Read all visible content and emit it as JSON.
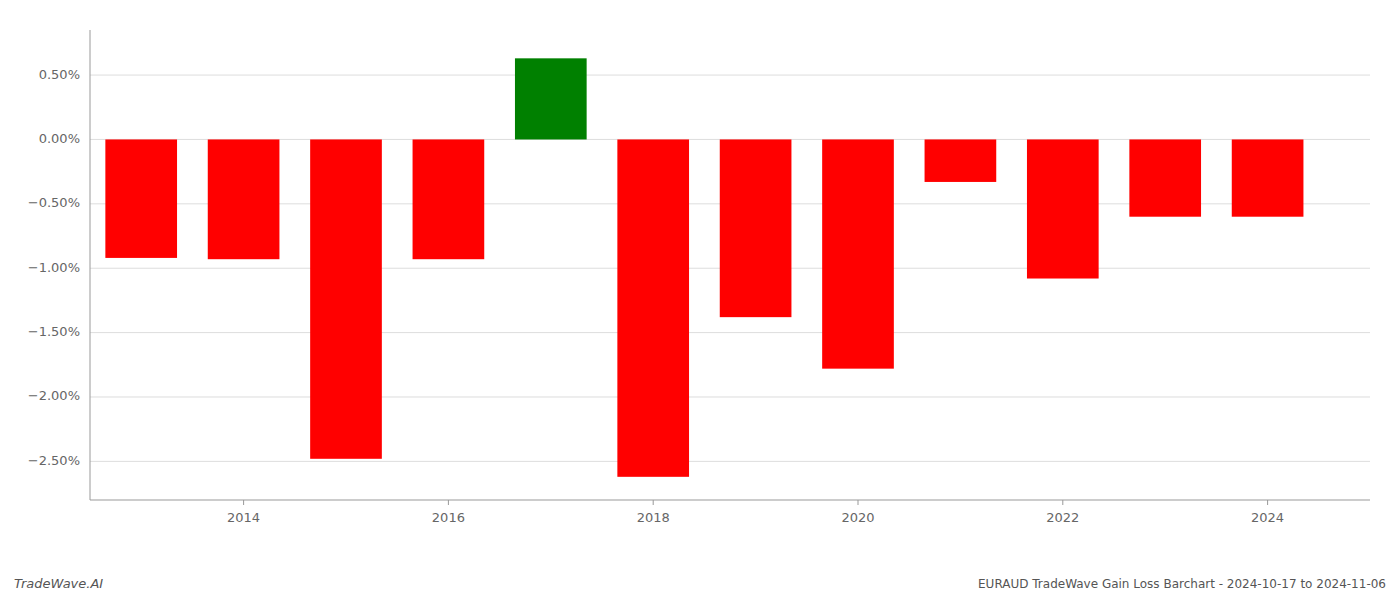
{
  "chart_data": {
    "type": "bar",
    "x": [
      2013,
      2014,
      2015,
      2016,
      2017,
      2018,
      2019,
      2020,
      2021,
      2022,
      2023,
      2024
    ],
    "values": [
      -0.0092,
      -0.0093,
      -0.0248,
      -0.0093,
      0.0063,
      -0.0262,
      -0.0138,
      -0.0178,
      -0.0033,
      -0.0108,
      -0.006,
      -0.006
    ],
    "colors": [
      "red",
      "red",
      "red",
      "red",
      "green",
      "red",
      "red",
      "red",
      "red",
      "red",
      "red",
      "red"
    ],
    "xlim": [
      2012.5,
      2025.0
    ],
    "xticks": [
      2014,
      2016,
      2018,
      2020,
      2022,
      2024
    ],
    "ylim": [
      -0.028,
      0.0085
    ],
    "yticks": [
      {
        "value": -0.025,
        "label": "−2.50%"
      },
      {
        "value": -0.02,
        "label": "−2.00%"
      },
      {
        "value": -0.015,
        "label": "−1.50%"
      },
      {
        "value": -0.01,
        "label": "−1.00%"
      },
      {
        "value": -0.005,
        "label": "−0.50%"
      },
      {
        "value": 0.0,
        "label": "0.00%"
      },
      {
        "value": 0.005,
        "label": "0.50%"
      }
    ],
    "grid": true,
    "annotations": [
      "TradeWave.AI",
      "EURAUD TradeWave Gain Loss Barchart - 2024-10-17 to 2024-11-06"
    ]
  }
}
